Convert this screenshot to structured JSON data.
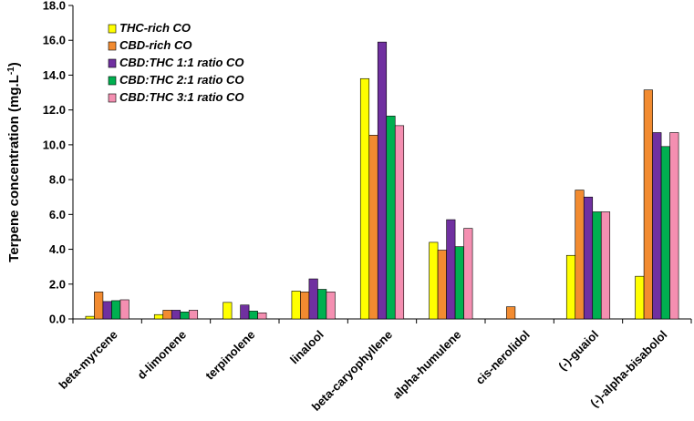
{
  "chart_data": {
    "type": "bar",
    "title": "",
    "xlabel": "",
    "ylabel": "Terpene concentration (mg.L",
    "ylabel_sup": "-1",
    "ylabel_close": ")",
    "ylim": [
      0,
      18
    ],
    "yticks": [
      "0.0",
      "2.0",
      "4.0",
      "6.0",
      "8.0",
      "10.0",
      "12.0",
      "14.0",
      "16.0",
      "18.0"
    ],
    "grid": false,
    "legend_position": "top-left",
    "categories": [
      "beta-myrcene",
      "d-limonene",
      "terpinolene",
      "linalool",
      "beta-caryophyllene",
      "alpha-humulene",
      "cis-nerolidol",
      "(-)-guaiol",
      "(-)-alpha-bisabolol"
    ],
    "series": [
      {
        "name": "THC-rich CO",
        "color": "#ffff00",
        "values": [
          0.15,
          0.25,
          0.95,
          1.6,
          13.8,
          4.4,
          0,
          3.65,
          2.45
        ]
      },
      {
        "name": "CBD-rich CO",
        "color": "#f28b30",
        "values": [
          1.55,
          0.5,
          0,
          1.55,
          10.55,
          3.95,
          0.7,
          7.4,
          13.15
        ]
      },
      {
        "name": "CBD:THC 1:1 ratio CO",
        "color": "#7030a0",
        "values": [
          1.0,
          0.5,
          0.8,
          2.3,
          15.9,
          5.7,
          0,
          7.0,
          10.7
        ]
      },
      {
        "name": "CBD:THC 2:1 ratio CO",
        "color": "#00b050",
        "values": [
          1.05,
          0.4,
          0.45,
          1.7,
          11.65,
          4.15,
          0,
          6.15,
          9.9
        ]
      },
      {
        "name": "CBD:THC 3:1 ratio CO",
        "color": "#f48fb1",
        "values": [
          1.1,
          0.5,
          0.35,
          1.55,
          11.1,
          5.2,
          0,
          6.15,
          10.7
        ]
      }
    ]
  }
}
